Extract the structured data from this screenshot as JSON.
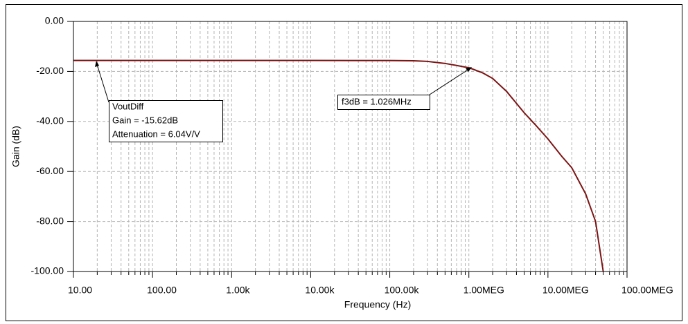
{
  "chart_data": {
    "type": "line",
    "xlabel": "Frequency (Hz)",
    "ylabel": "Gain (dB)",
    "x": [
      10,
      100,
      1000,
      10000,
      100000,
      200000,
      300000,
      500000,
      700000,
      1026000,
      1500000,
      2000000,
      3000000,
      5000000,
      7000000,
      10000000,
      15000000,
      20000000,
      30000000,
      40000000,
      50000000
    ],
    "values": [
      -15.62,
      -15.62,
      -15.62,
      -15.62,
      -15.65,
      -15.75,
      -16.0,
      -16.8,
      -17.6,
      -18.62,
      -20.6,
      -22.8,
      -28.0,
      -36.5,
      -41.5,
      -47.0,
      -54.0,
      -58.5,
      -69.0,
      -80.0,
      -100.0
    ],
    "color": "#7d1414",
    "log_x": true,
    "grid": true,
    "xlim": [
      10,
      100000000
    ],
    "xticks": [
      {
        "value": 10,
        "label": "10.00"
      },
      {
        "value": 100,
        "label": "100.00"
      },
      {
        "value": 1000,
        "label": "1.00k"
      },
      {
        "value": 10000,
        "label": "10.00k"
      },
      {
        "value": 100000,
        "label": "100.00k"
      },
      {
        "value": 1000000,
        "label": "1.00MEG"
      },
      {
        "value": 10000000,
        "label": "10.00MEG"
      },
      {
        "value": 100000000,
        "label": "100.00MEG"
      }
    ],
    "ylim": [
      -100,
      0
    ],
    "yticks": [
      {
        "value": 0,
        "label": "0.00"
      },
      {
        "value": -20,
        "label": "-20.00"
      },
      {
        "value": -40,
        "label": "-40.00"
      },
      {
        "value": -60,
        "label": "-60.00"
      },
      {
        "value": -80,
        "label": "-80.00"
      },
      {
        "value": -100,
        "label": "-100.00"
      }
    ],
    "annotations": [
      {
        "lines": [
          "VoutDiff",
          "Gain = -15.62dB",
          "Attenuation = 6.04V/V"
        ]
      },
      {
        "lines": [
          "f3dB = 1.026MHz"
        ]
      }
    ]
  }
}
